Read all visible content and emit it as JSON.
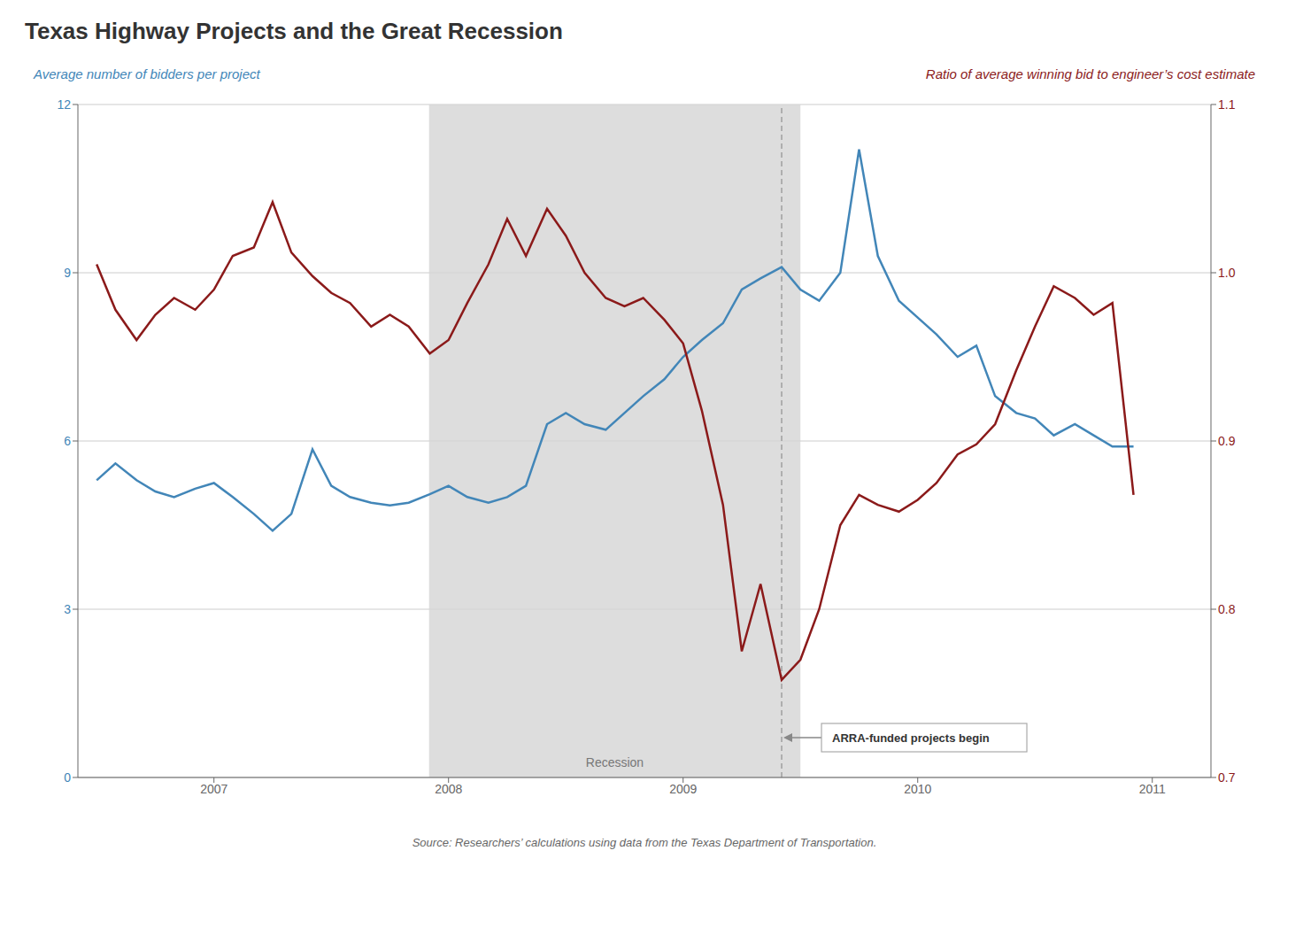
{
  "chart_data": {
    "type": "line",
    "title": "Texas Highway Projects and the Great Recession",
    "ylabel": "Average number of bidders per project",
    "y2label": "Ratio of average winning bid to engineer’s cost estimate",
    "source": "Source: Researchers’ calculations using data from the Texas Department of Transportation.",
    "x": [
      2006.5,
      2006.58,
      2006.67,
      2006.75,
      2006.83,
      2006.92,
      2007.0,
      2007.08,
      2007.17,
      2007.25,
      2007.33,
      2007.42,
      2007.5,
      2007.58,
      2007.67,
      2007.75,
      2007.83,
      2007.92,
      2008.0,
      2008.08,
      2008.17,
      2008.25,
      2008.33,
      2008.42,
      2008.5,
      2008.58,
      2008.67,
      2008.75,
      2008.83,
      2008.92,
      2009.0,
      2009.08,
      2009.17,
      2009.25,
      2009.33,
      2009.42,
      2009.5,
      2009.58,
      2009.67,
      2009.75,
      2009.83,
      2009.92,
      2010.0,
      2010.08,
      2010.17,
      2010.25,
      2010.33,
      2010.42,
      2010.5,
      2010.58,
      2010.67,
      2010.75,
      2010.83,
      2010.92
    ],
    "xlim": [
      2006.42,
      2011.25
    ],
    "xticks": [
      2007,
      2008,
      2009,
      2010,
      2011
    ],
    "ylim": [
      0,
      12
    ],
    "yticks": [
      0,
      3,
      6,
      9,
      12
    ],
    "y2lim": [
      0.7,
      1.1
    ],
    "y2ticks": [
      0.7,
      0.8,
      0.9,
      {
        "value": 1.0,
        "label": "1.0"
      },
      1.1
    ],
    "grid": true,
    "series": [
      {
        "color": "#4286b8",
        "values": [
          5.3,
          5.6,
          5.3,
          5.1,
          5.0,
          5.15,
          5.25,
          5.0,
          4.7,
          4.4,
          4.7,
          5.85,
          5.2,
          5.0,
          4.9,
          4.85,
          4.9,
          5.05,
          5.2,
          5.0,
          4.9,
          5.0,
          5.2,
          6.3,
          6.5,
          6.3,
          6.2,
          6.5,
          6.8,
          7.1,
          7.5,
          7.8,
          8.1,
          8.7,
          8.9,
          9.1,
          8.7,
          8.5,
          9.0,
          11.2,
          9.3,
          8.5,
          8.2,
          7.9,
          7.5,
          7.7,
          6.8,
          6.5,
          6.4,
          6.1,
          6.3,
          6.1,
          5.9,
          5.9
        ]
      },
      {
        "color": "#8b1a1a",
        "axis": "y2",
        "values": [
          1.005,
          0.978,
          0.96,
          0.975,
          0.985,
          0.978,
          0.99,
          1.01,
          1.015,
          1.042,
          1.012,
          0.998,
          0.988,
          0.982,
          0.968,
          0.975,
          0.968,
          0.952,
          0.96,
          0.982,
          1.005,
          1.032,
          1.01,
          1.038,
          1.022,
          1.0,
          0.985,
          0.98,
          0.985,
          0.972,
          0.958,
          0.918,
          0.862,
          0.775,
          0.815,
          0.758,
          0.77,
          0.8,
          0.85,
          0.868,
          0.862,
          0.858,
          0.865,
          0.875,
          0.892,
          0.898,
          0.91,
          0.942,
          0.968,
          0.992,
          0.985,
          0.975,
          0.982,
          0.868
        ]
      }
    ],
    "shaded_ranges": [
      {
        "x0": 2007.917,
        "x1": 2009.5,
        "label": "Recession",
        "color": "#d4d4d4"
      }
    ],
    "vertical_lines": [
      {
        "x": 2009.42,
        "line_style": "dashed",
        "label": "ARRA-funded projects begin"
      }
    ]
  }
}
